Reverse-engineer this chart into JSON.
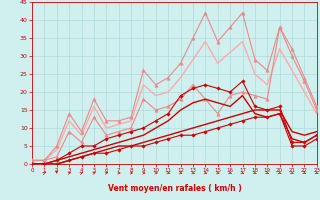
{
  "title": "",
  "xlabel": "Vent moyen/en rafales ( km/h )",
  "xlim": [
    0,
    23
  ],
  "ylim": [
    0,
    45
  ],
  "xticks": [
    0,
    1,
    2,
    3,
    4,
    5,
    6,
    7,
    8,
    9,
    10,
    11,
    12,
    13,
    14,
    15,
    16,
    17,
    18,
    19,
    20,
    21,
    22,
    23
  ],
  "yticks": [
    0,
    5,
    10,
    15,
    20,
    25,
    30,
    35,
    40,
    45
  ],
  "bg_color": "#cff0ee",
  "grid_color": "#aadddd",
  "series": [
    {
      "x": [
        0,
        1,
        2,
        3,
        4,
        5,
        6,
        7,
        8,
        9,
        10,
        11,
        12,
        13,
        14,
        15,
        16,
        17,
        18,
        19,
        20,
        21,
        22,
        23
      ],
      "y": [
        0,
        0,
        0,
        1,
        2,
        3,
        3,
        4,
        5,
        5,
        6,
        7,
        8,
        8,
        9,
        10,
        11,
        12,
        13,
        13,
        14,
        5,
        5,
        7
      ],
      "color": "#cc0000",
      "lw": 0.8,
      "marker": "D",
      "ms": 1.8,
      "zorder": 5
    },
    {
      "x": [
        0,
        1,
        2,
        3,
        4,
        5,
        6,
        7,
        8,
        9,
        10,
        11,
        12,
        13,
        14,
        15,
        16,
        17,
        18,
        19,
        20,
        21,
        22,
        23
      ],
      "y": [
        0,
        0,
        0,
        1,
        2,
        3,
        4,
        5,
        5,
        6,
        7,
        8,
        9,
        10,
        11,
        12,
        13,
        14,
        15,
        15,
        15,
        9,
        8,
        9
      ],
      "color": "#cc0000",
      "lw": 1.0,
      "marker": null,
      "ms": 0,
      "zorder": 4
    },
    {
      "x": [
        0,
        1,
        2,
        3,
        4,
        5,
        6,
        7,
        8,
        9,
        10,
        11,
        12,
        13,
        14,
        15,
        16,
        17,
        18,
        19,
        20,
        21,
        22,
        23
      ],
      "y": [
        0,
        0,
        1,
        3,
        5,
        5,
        7,
        8,
        9,
        10,
        12,
        14,
        19,
        21,
        22,
        21,
        20,
        23,
        16,
        15,
        16,
        6,
        6,
        8
      ],
      "color": "#cc0000",
      "lw": 0.8,
      "marker": "D",
      "ms": 1.8,
      "zorder": 5
    },
    {
      "x": [
        0,
        1,
        2,
        3,
        4,
        5,
        6,
        7,
        8,
        9,
        10,
        11,
        12,
        13,
        14,
        15,
        16,
        17,
        18,
        19,
        20,
        21,
        22,
        23
      ],
      "y": [
        0,
        0,
        1,
        2,
        3,
        4,
        5,
        6,
        7,
        8,
        10,
        12,
        15,
        17,
        18,
        17,
        16,
        19,
        14,
        13,
        14,
        7,
        6,
        8
      ],
      "color": "#cc0000",
      "lw": 1.0,
      "marker": null,
      "ms": 0,
      "zorder": 4
    },
    {
      "x": [
        0,
        1,
        2,
        3,
        4,
        5,
        6,
        7,
        8,
        9,
        10,
        11,
        12,
        13,
        14,
        15,
        16,
        17,
        18,
        19,
        20,
        21,
        22,
        23
      ],
      "y": [
        1,
        1,
        2,
        9,
        6,
        13,
        8,
        9,
        10,
        18,
        15,
        16,
        18,
        22,
        18,
        14,
        19,
        20,
        19,
        18,
        38,
        30,
        23,
        15
      ],
      "color": "#ee8888",
      "lw": 0.8,
      "marker": "^",
      "ms": 2.5,
      "zorder": 3
    },
    {
      "x": [
        0,
        1,
        2,
        3,
        4,
        5,
        6,
        7,
        8,
        9,
        10,
        11,
        12,
        13,
        14,
        15,
        16,
        17,
        18,
        19,
        20,
        21,
        22,
        23
      ],
      "y": [
        1,
        1,
        5,
        14,
        9,
        18,
        12,
        12,
        13,
        26,
        22,
        24,
        28,
        35,
        42,
        34,
        38,
        42,
        29,
        26,
        38,
        32,
        24,
        16
      ],
      "color": "#ee8888",
      "lw": 0.8,
      "marker": "^",
      "ms": 2.5,
      "zorder": 3
    },
    {
      "x": [
        0,
        1,
        2,
        3,
        4,
        5,
        6,
        7,
        8,
        9,
        10,
        11,
        12,
        13,
        14,
        15,
        16,
        17,
        18,
        19,
        20,
        21,
        22,
        23
      ],
      "y": [
        1,
        1,
        4,
        12,
        8,
        16,
        10,
        11,
        12,
        22,
        19,
        20,
        24,
        29,
        34,
        28,
        31,
        34,
        25,
        22,
        32,
        26,
        20,
        14
      ],
      "color": "#ffaaaa",
      "lw": 1.0,
      "marker": null,
      "ms": 0,
      "zorder": 2
    }
  ],
  "wind_arrow_angles": [
    45,
    270,
    30,
    45,
    30,
    30,
    0,
    0,
    0,
    0,
    330,
    330,
    330,
    330,
    330,
    315,
    315,
    315,
    315,
    315,
    315,
    315,
    315
  ],
  "arrow_color": "#cc0000"
}
